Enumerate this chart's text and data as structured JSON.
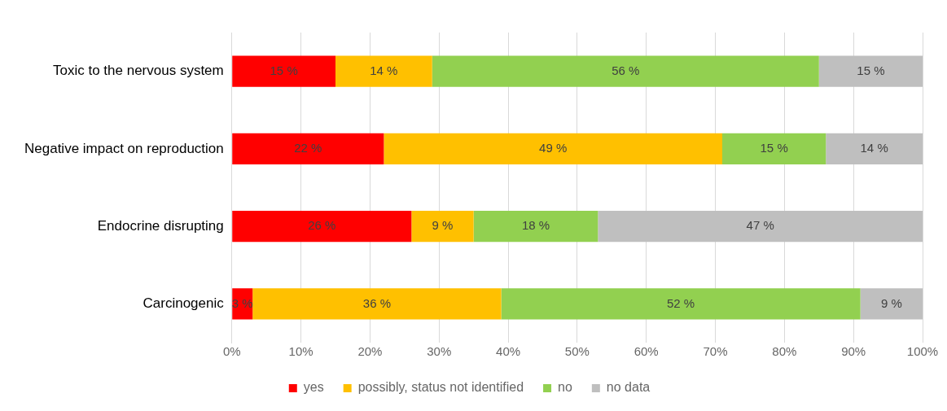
{
  "chart_data": {
    "type": "bar",
    "orientation": "horizontal",
    "stacked": true,
    "categories": [
      "Toxic to the nervous system",
      "Negative impact on reproduction",
      "Endocrine disrupting",
      "Carcinogenic"
    ],
    "series": [
      {
        "name": "yes",
        "color": "#ff0000",
        "values": [
          15,
          22,
          26,
          3
        ],
        "value_labels": [
          "15 %",
          "22 %",
          "26 %",
          "3 %"
        ]
      },
      {
        "name": "possibly, status not identified",
        "color": "#ffc000",
        "values": [
          14,
          49,
          9,
          36
        ],
        "value_labels": [
          "14 %",
          "49 %",
          "9 %",
          "36 %"
        ]
      },
      {
        "name": "no",
        "color": "#92d050",
        "values": [
          56,
          15,
          18,
          52
        ],
        "value_labels": [
          "56 %",
          "15 %",
          "18 %",
          "52 %"
        ]
      },
      {
        "name": "no data",
        "color": "#bfbfbf",
        "values": [
          15,
          14,
          47,
          9
        ],
        "value_labels": [
          "15 %",
          "14 %",
          "47 %",
          "9 %"
        ]
      }
    ],
    "xlim": [
      0,
      100
    ],
    "xticks": [
      {
        "value": 0,
        "label": "0%"
      },
      {
        "value": 10,
        "label": "10%"
      },
      {
        "value": 20,
        "label": "20%"
      },
      {
        "value": 30,
        "label": "30%"
      },
      {
        "value": 40,
        "label": "40%"
      },
      {
        "value": 50,
        "label": "50%"
      },
      {
        "value": 60,
        "label": "60%"
      },
      {
        "value": 70,
        "label": "70%"
      },
      {
        "value": 80,
        "label": "80%"
      },
      {
        "value": 90,
        "label": "90%"
      },
      {
        "value": 100,
        "label": "100%"
      }
    ],
    "grid": "x",
    "legend": "bottom"
  }
}
